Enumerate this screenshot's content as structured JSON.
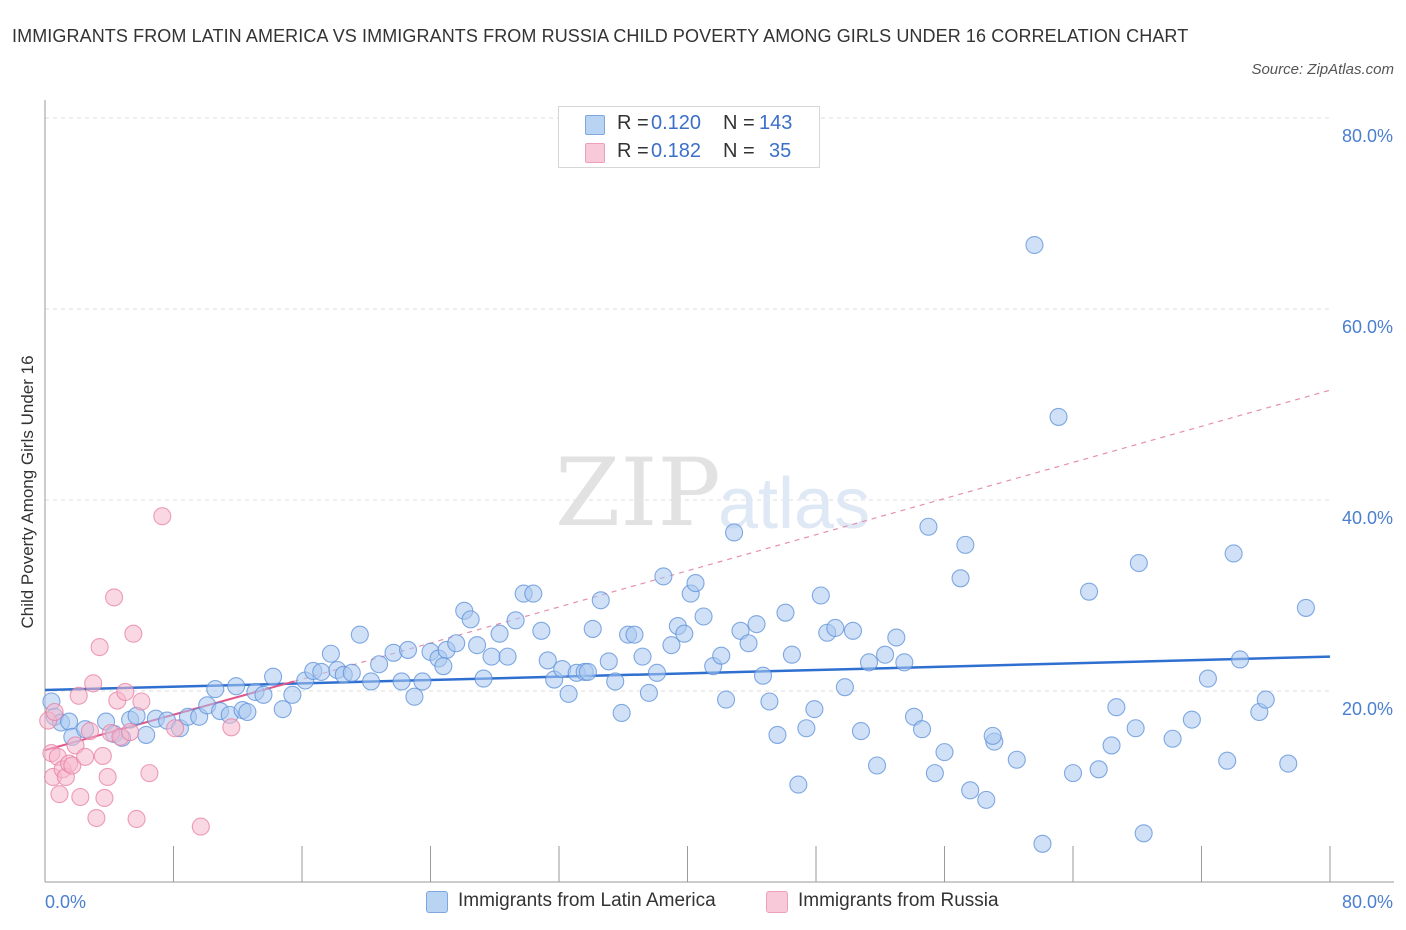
{
  "title": "IMMIGRANTS FROM LATIN AMERICA VS IMMIGRANTS FROM RUSSIA CHILD POVERTY AMONG GIRLS UNDER 16 CORRELATION CHART",
  "source": "Source: ZipAtlas.com",
  "watermark": {
    "zip": "ZIP",
    "atlas": "atlas"
  },
  "legend": {
    "rows": [
      {
        "r_label": "R =",
        "r_value": "0.120",
        "n_label": "N =",
        "n_value": "143",
        "color": "#a9c8f0"
      },
      {
        "r_label": "R =",
        "r_value": "0.182",
        "n_label": "N =",
        "n_value": "35",
        "color": "#f5b8cc"
      }
    ]
  },
  "bottom_legend": [
    {
      "label": "Immigrants from Latin America",
      "color": "#a9c8f0"
    },
    {
      "label": "Immigrants from Russia",
      "color": "#f5b8cc"
    }
  ],
  "chart_data": {
    "type": "scatter",
    "xlabel": "",
    "ylabel": "Child Poverty Among Girls Under 16",
    "xlim": [
      0,
      80
    ],
    "ylim": [
      0,
      80
    ],
    "x_tick_labels": [
      "0.0%",
      "80.0%"
    ],
    "y_tick_labels": [
      "20.0%",
      "40.0%",
      "60.0%",
      "80.0%"
    ],
    "y_ticks": [
      20,
      40,
      60,
      80
    ],
    "grid": true,
    "series": [
      {
        "name": "Immigrants from Latin America",
        "color": "#5b8fd8",
        "fill": "#a9c8f0",
        "points": [
          [
            0.4,
            18.9
          ],
          [
            0.6,
            17.3
          ],
          [
            1.0,
            16.7
          ],
          [
            1.5,
            16.8
          ],
          [
            1.7,
            15.2
          ],
          [
            2.5,
            16.0
          ],
          [
            3.8,
            16.8
          ],
          [
            4.3,
            15.5
          ],
          [
            4.8,
            15.1
          ],
          [
            5.3,
            17.0
          ],
          [
            5.7,
            17.4
          ],
          [
            6.3,
            15.4
          ],
          [
            6.9,
            17.1
          ],
          [
            7.6,
            16.9
          ],
          [
            8.4,
            16.1
          ],
          [
            8.9,
            17.3
          ],
          [
            9.6,
            17.3
          ],
          [
            10.1,
            18.5
          ],
          [
            10.6,
            20.2
          ],
          [
            10.9,
            17.9
          ],
          [
            11.5,
            17.5
          ],
          [
            11.9,
            20.5
          ],
          [
            12.3,
            18.0
          ],
          [
            13.1,
            19.9
          ],
          [
            13.6,
            19.6
          ],
          [
            14.2,
            21.5
          ],
          [
            14.8,
            18.1
          ],
          [
            15.4,
            19.6
          ],
          [
            16.2,
            21.1
          ],
          [
            16.7,
            22.1
          ],
          [
            17.2,
            22.0
          ],
          [
            17.8,
            23.9
          ],
          [
            18.2,
            22.2
          ],
          [
            18.6,
            21.7
          ],
          [
            19.1,
            21.9
          ],
          [
            19.6,
            25.9
          ],
          [
            20.3,
            21.0
          ],
          [
            20.8,
            22.8
          ],
          [
            21.7,
            24.0
          ],
          [
            22.2,
            21.0
          ],
          [
            22.6,
            24.3
          ],
          [
            23.0,
            19.4
          ],
          [
            23.5,
            21.0
          ],
          [
            24.0,
            24.1
          ],
          [
            24.5,
            23.4
          ],
          [
            25.0,
            24.3
          ],
          [
            25.6,
            25.0
          ],
          [
            26.1,
            28.4
          ],
          [
            26.5,
            27.5
          ],
          [
            26.9,
            24.8
          ],
          [
            27.3,
            21.3
          ],
          [
            27.8,
            23.6
          ],
          [
            28.3,
            26.0
          ],
          [
            28.8,
            23.6
          ],
          [
            29.3,
            27.4
          ],
          [
            29.8,
            30.2
          ],
          [
            30.4,
            30.2
          ],
          [
            30.9,
            26.3
          ],
          [
            31.3,
            23.2
          ],
          [
            31.7,
            21.2
          ],
          [
            32.2,
            22.3
          ],
          [
            32.6,
            19.7
          ],
          [
            33.1,
            21.9
          ],
          [
            33.6,
            22.0
          ],
          [
            34.1,
            26.5
          ],
          [
            34.6,
            29.5
          ],
          [
            35.1,
            23.1
          ],
          [
            35.5,
            21.0
          ],
          [
            35.9,
            17.7
          ],
          [
            36.3,
            25.9
          ],
          [
            36.7,
            25.9
          ],
          [
            37.2,
            23.6
          ],
          [
            37.6,
            19.8
          ],
          [
            38.1,
            21.9
          ],
          [
            38.5,
            32.0
          ],
          [
            39.0,
            24.8
          ],
          [
            39.4,
            26.8
          ],
          [
            39.8,
            26.0
          ],
          [
            40.2,
            30.2
          ],
          [
            40.5,
            31.3
          ],
          [
            41.0,
            27.8
          ],
          [
            41.6,
            22.6
          ],
          [
            42.1,
            23.7
          ],
          [
            42.4,
            19.1
          ],
          [
            42.9,
            36.6
          ],
          [
            43.3,
            26.3
          ],
          [
            43.8,
            25.0
          ],
          [
            44.3,
            27.0
          ],
          [
            44.7,
            21.6
          ],
          [
            45.1,
            18.9
          ],
          [
            45.6,
            15.4
          ],
          [
            46.1,
            28.2
          ],
          [
            46.5,
            23.8
          ],
          [
            46.9,
            10.2
          ],
          [
            47.4,
            16.1
          ],
          [
            47.9,
            18.1
          ],
          [
            48.3,
            30.0
          ],
          [
            48.7,
            26.1
          ],
          [
            49.2,
            26.6
          ],
          [
            49.8,
            20.4
          ],
          [
            50.3,
            26.3
          ],
          [
            50.8,
            15.8
          ],
          [
            51.3,
            23.0
          ],
          [
            51.8,
            12.2
          ],
          [
            52.3,
            23.8
          ],
          [
            53.0,
            25.6
          ],
          [
            53.5,
            23.0
          ],
          [
            54.1,
            17.3
          ],
          [
            54.6,
            16.0
          ],
          [
            55.0,
            37.2
          ],
          [
            55.4,
            11.4
          ],
          [
            56.0,
            13.6
          ],
          [
            57.0,
            31.8
          ],
          [
            57.3,
            35.3
          ],
          [
            57.6,
            9.6
          ],
          [
            58.6,
            8.6
          ],
          [
            59.1,
            14.7
          ],
          [
            59.0,
            15.3
          ],
          [
            60.5,
            12.8
          ],
          [
            61.6,
            66.7
          ],
          [
            62.1,
            4.0
          ],
          [
            63.1,
            48.7
          ],
          [
            64.0,
            11.4
          ],
          [
            65.0,
            30.4
          ],
          [
            65.6,
            11.8
          ],
          [
            66.4,
            14.3
          ],
          [
            66.7,
            18.3
          ],
          [
            67.9,
            16.1
          ],
          [
            68.1,
            33.4
          ],
          [
            68.4,
            5.1
          ],
          [
            70.2,
            15.0
          ],
          [
            71.4,
            17.0
          ],
          [
            72.4,
            21.3
          ],
          [
            73.6,
            12.7
          ],
          [
            74.0,
            34.4
          ],
          [
            74.4,
            23.3
          ],
          [
            75.6,
            17.8
          ],
          [
            76.0,
            19.1
          ],
          [
            77.4,
            12.4
          ],
          [
            78.5,
            28.7
          ],
          [
            33.8,
            22.0
          ],
          [
            24.8,
            22.6
          ],
          [
            12.6,
            17.8
          ]
        ],
        "trend": {
          "x": [
            0,
            80
          ],
          "y": [
            20.1,
            23.6
          ],
          "style": "solid"
        }
      },
      {
        "name": "Immigrants from Russia",
        "color": "#e77fa3",
        "fill": "#f5b8cc",
        "points": [
          [
            0.2,
            16.9
          ],
          [
            0.4,
            13.5
          ],
          [
            0.5,
            11.0
          ],
          [
            0.6,
            17.8
          ],
          [
            0.8,
            13.1
          ],
          [
            0.9,
            9.2
          ],
          [
            1.1,
            11.8
          ],
          [
            1.3,
            11.0
          ],
          [
            1.5,
            12.4
          ],
          [
            1.7,
            12.2
          ],
          [
            1.9,
            14.3
          ],
          [
            2.1,
            19.5
          ],
          [
            2.2,
            8.9
          ],
          [
            2.5,
            13.1
          ],
          [
            2.8,
            15.8
          ],
          [
            3.0,
            20.8
          ],
          [
            3.2,
            6.7
          ],
          [
            3.4,
            24.6
          ],
          [
            3.6,
            13.2
          ],
          [
            3.7,
            8.8
          ],
          [
            3.9,
            11.0
          ],
          [
            4.1,
            15.6
          ],
          [
            4.3,
            29.8
          ],
          [
            4.5,
            19.0
          ],
          [
            4.7,
            15.2
          ],
          [
            5.0,
            19.9
          ],
          [
            5.3,
            15.7
          ],
          [
            5.5,
            26.0
          ],
          [
            5.7,
            6.6
          ],
          [
            6.0,
            18.9
          ],
          [
            6.5,
            11.4
          ],
          [
            7.3,
            38.3
          ],
          [
            8.1,
            16.1
          ],
          [
            9.7,
            5.8
          ],
          [
            11.6,
            16.2
          ]
        ],
        "trend": {
          "x": [
            0,
            15.5
          ],
          "y": [
            13.8,
            21.0
          ],
          "style": "solid"
        },
        "trend_ext": {
          "x": [
            15.5,
            80
          ],
          "y": [
            21.0,
            51.5
          ],
          "style": "dashed"
        }
      }
    ]
  }
}
